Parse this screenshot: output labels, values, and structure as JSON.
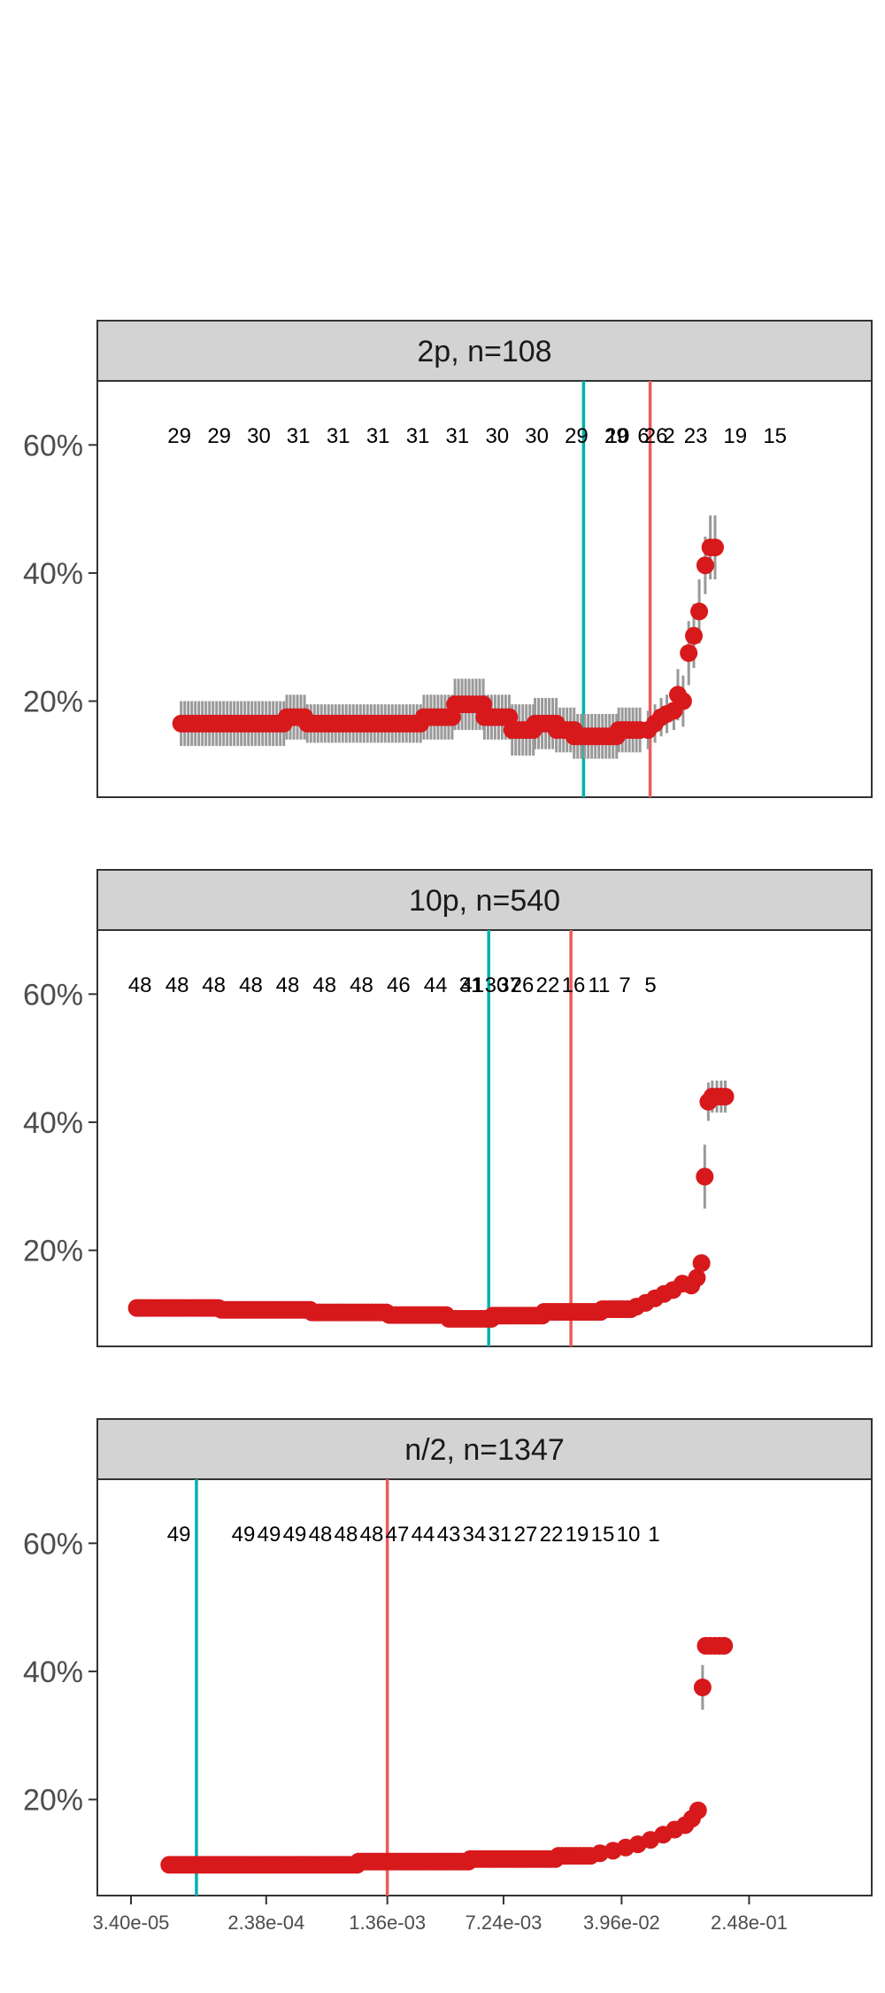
{
  "chart_data": {
    "type": "scatter",
    "x_scale": "log",
    "x_ticks": [
      "3.40e-05",
      "2.38e-04",
      "1.36e-03",
      "7.24e-03",
      "3.96e-02",
      "2.48e-01"
    ],
    "y_ticks": [
      "20%",
      "40%",
      "60%"
    ],
    "y_range": [
      0.05,
      0.7
    ],
    "grid": false,
    "colors": {
      "point": "#d7191c",
      "error_bar": "#999999",
      "line_teal": "#00b0b0",
      "line_red": "#f05a5a",
      "strip_bg": "#d3d3d3"
    },
    "panels": [
      {
        "strip": "2p, n=108",
        "vlines": {
          "teal_x": 0.0229,
          "red_x": 0.0597
        },
        "counts": [
          {
            "x": 6.82e-05,
            "label": "29"
          },
          {
            "x": 0.000121,
            "label": "29"
          },
          {
            "x": 0.000214,
            "label": "30"
          },
          {
            "x": 0.000378,
            "label": "31"
          },
          {
            "x": 0.000671,
            "label": "31"
          },
          {
            "x": 0.00119,
            "label": "31"
          },
          {
            "x": 0.00211,
            "label": "31"
          },
          {
            "x": 0.00373,
            "label": "31"
          },
          {
            "x": 0.00661,
            "label": "30"
          },
          {
            "x": 0.0117,
            "label": "30"
          },
          {
            "x": 0.0207,
            "label": "29"
          },
          {
            "x": 0.0367,
            "label": "29"
          },
          {
            "x": 0.0649,
            "label": "26"
          },
          {
            "x": 0.115,
            "label": "23"
          },
          {
            "x": 0.203,
            "label": "19"
          },
          {
            "x": 0.36,
            "label": "15"
          },
          {
            "x": 0.0229,
            "label": "10",
            "fixed_px": 588
          },
          {
            "x": 0.0896,
            "label": "6",
            "fixed_px": 617
          },
          {
            "x": 0.166,
            "label": "2",
            "fixed_px": 646
          }
        ],
        "segments": [
          {
            "x0": 7e-05,
            "x1": 0.00032,
            "y": 0.165,
            "err": 0.035
          },
          {
            "x0": 0.00032,
            "x1": 0.00043,
            "y": 0.175,
            "err": 0.035
          },
          {
            "x0": 0.00043,
            "x1": 0.0023,
            "y": 0.165,
            "err": 0.03
          },
          {
            "x0": 0.0023,
            "x1": 0.0036,
            "y": 0.175,
            "err": 0.035
          },
          {
            "x0": 0.0036,
            "x1": 0.0055,
            "y": 0.195,
            "err": 0.04
          },
          {
            "x0": 0.0055,
            "x1": 0.0082,
            "y": 0.175,
            "err": 0.035
          },
          {
            "x0": 0.0082,
            "x1": 0.0114,
            "y": 0.155,
            "err": 0.04
          },
          {
            "x0": 0.0114,
            "x1": 0.0155,
            "y": 0.165,
            "err": 0.04
          },
          {
            "x0": 0.0155,
            "x1": 0.02,
            "y": 0.155,
            "err": 0.035
          },
          {
            "x0": 0.02,
            "x1": 0.038,
            "y": 0.145,
            "err": 0.035
          },
          {
            "x0": 0.038,
            "x1": 0.053,
            "y": 0.155,
            "err": 0.035
          }
        ],
        "points": [
          {
            "x": 0.058,
            "y": 0.155,
            "err": 0.03
          },
          {
            "x": 0.064,
            "y": 0.165,
            "err": 0.03
          },
          {
            "x": 0.07,
            "y": 0.175,
            "err": 0.03
          },
          {
            "x": 0.076,
            "y": 0.18,
            "err": 0.03
          },
          {
            "x": 0.084,
            "y": 0.185,
            "err": 0.03
          },
          {
            "x": 0.089,
            "y": 0.21,
            "err": 0.04
          },
          {
            "x": 0.096,
            "y": 0.2,
            "err": 0.04
          },
          {
            "x": 0.104,
            "y": 0.275,
            "err": 0.05
          },
          {
            "x": 0.112,
            "y": 0.302,
            "err": 0.05
          },
          {
            "x": 0.121,
            "y": 0.34,
            "err": 0.05
          },
          {
            "x": 0.132,
            "y": 0.412,
            "err": 0.045
          },
          {
            "x": 0.142,
            "y": 0.44,
            "err": 0.05
          },
          {
            "x": 0.152,
            "y": 0.44,
            "err": 0.05
          }
        ]
      },
      {
        "strip": "10p, n=540",
        "vlines": {
          "teal_x": 0.00585,
          "red_x": 0.0191
        },
        "counts": [
          {
            "x": 3.87e-05,
            "label": "48"
          },
          {
            "x": 6.6e-05,
            "label": "48"
          },
          {
            "x": 0.000112,
            "label": "48"
          },
          {
            "x": 0.000191,
            "label": "48"
          },
          {
            "x": 0.000324,
            "label": "48"
          },
          {
            "x": 0.000551,
            "label": "48"
          },
          {
            "x": 0.000938,
            "label": "48"
          },
          {
            "x": 0.0016,
            "label": "46"
          },
          {
            "x": 0.00272,
            "label": "44"
          },
          {
            "x": 0.00463,
            "label": "41"
          },
          {
            "x": 0.00788,
            "label": "37"
          },
          {
            "x": 0.00585,
            "label": "31",
            "fixed_px": 422
          },
          {
            "x": 0.00985,
            "label": "30",
            "fixed_px": 451
          },
          {
            "x": 0.0191,
            "label": "26",
            "fixed_px": 480
          },
          {
            "x": 0.032,
            "label": "22",
            "fixed_px": 509
          },
          {
            "x": 0.054,
            "label": "16",
            "fixed_px": 538
          },
          {
            "x": 0.091,
            "label": "11",
            "fixed_px": 567
          },
          {
            "x": 0.153,
            "label": "7",
            "fixed_px": 596
          },
          {
            "x": 0.257,
            "label": "5",
            "fixed_px": 625
          }
        ],
        "segments": [
          {
            "x0": 3.7e-05,
            "x1": 0.000125,
            "y": 0.11,
            "err": 0.004
          },
          {
            "x0": 0.000125,
            "x1": 0.00046,
            "y": 0.107,
            "err": 0.004
          },
          {
            "x0": 0.00046,
            "x1": 0.0014,
            "y": 0.103,
            "err": 0.004
          },
          {
            "x0": 0.0014,
            "x1": 0.0033,
            "y": 0.099,
            "err": 0.004
          },
          {
            "x0": 0.0033,
            "x1": 0.0062,
            "y": 0.093,
            "err": 0.004
          },
          {
            "x0": 0.0062,
            "x1": 0.013,
            "y": 0.098,
            "err": 0.004
          },
          {
            "x0": 0.013,
            "x1": 0.03,
            "y": 0.104,
            "err": 0.004
          },
          {
            "x0": 0.03,
            "x1": 0.046,
            "y": 0.108,
            "err": 0.004
          }
        ],
        "points": [
          {
            "x": 0.049,
            "y": 0.112,
            "err": 0.004
          },
          {
            "x": 0.056,
            "y": 0.118,
            "err": 0.004
          },
          {
            "x": 0.064,
            "y": 0.125,
            "err": 0.004
          },
          {
            "x": 0.073,
            "y": 0.132,
            "err": 0.005
          },
          {
            "x": 0.083,
            "y": 0.138,
            "err": 0.005
          },
          {
            "x": 0.095,
            "y": 0.148,
            "err": 0.005
          },
          {
            "x": 0.108,
            "y": 0.145,
            "err": 0.006
          },
          {
            "x": 0.117,
            "y": 0.157,
            "err": 0.006
          },
          {
            "x": 0.125,
            "y": 0.18,
            "err": 0.008
          },
          {
            "x": 0.131,
            "y": 0.315,
            "err": 0.05
          },
          {
            "x": 0.138,
            "y": 0.432,
            "err": 0.03
          },
          {
            "x": 0.146,
            "y": 0.44,
            "err": 0.025
          },
          {
            "x": 0.156,
            "y": 0.44,
            "err": 0.025
          },
          {
            "x": 0.166,
            "y": 0.44,
            "err": 0.025
          },
          {
            "x": 0.176,
            "y": 0.44,
            "err": 0.025
          }
        ]
      },
      {
        "strip": "n/2, n=1347",
        "vlines": {
          "teal_x": 8.72e-05,
          "red_x": 0.00136
        },
        "counts": [
          {
            "x": 6.77e-05,
            "label": "49"
          },
          {
            "x": 8.72e-05,
            "label": "49",
            "fixed_px": 165
          },
          {
            "x": 0.00015,
            "label": "49",
            "fixed_px": 194
          },
          {
            "x": 0.000256,
            "label": "49",
            "fixed_px": 223
          },
          {
            "x": 0.000436,
            "label": "48",
            "fixed_px": 252
          },
          {
            "x": 0.000742,
            "label": "48",
            "fixed_px": 281
          },
          {
            "x": 0.00126,
            "label": "48",
            "fixed_px": 310
          },
          {
            "x": 0.00136,
            "label": "47",
            "fixed_px": 339
          },
          {
            "x": 0.0024,
            "label": "44",
            "fixed_px": 368
          },
          {
            "x": 0.00409,
            "label": "43",
            "fixed_px": 397
          },
          {
            "x": 0.00697,
            "label": "34",
            "fixed_px": 426
          },
          {
            "x": 0.0119,
            "label": "31",
            "fixed_px": 455
          },
          {
            "x": 0.0202,
            "label": "27",
            "fixed_px": 484
          },
          {
            "x": 0.0344,
            "label": "22",
            "fixed_px": 513
          },
          {
            "x": 0.0585,
            "label": "19",
            "fixed_px": 542
          },
          {
            "x": 0.0996,
            "label": "15",
            "fixed_px": 571
          },
          {
            "x": 0.1696,
            "label": "10",
            "fixed_px": 600
          },
          {
            "x": 0.2888,
            "label": "1",
            "fixed_px": 629
          }
        ],
        "segments": [
          {
            "x0": 5.9e-05,
            "x1": 0.0009,
            "y": 0.098,
            "err": 0.003
          },
          {
            "x0": 0.0009,
            "x1": 0.0045,
            "y": 0.103,
            "err": 0.003
          },
          {
            "x0": 0.0045,
            "x1": 0.016,
            "y": 0.107,
            "err": 0.003
          },
          {
            "x0": 0.016,
            "x1": 0.026,
            "y": 0.112,
            "err": 0.003
          }
        ],
        "points": [
          {
            "x": 0.029,
            "y": 0.116,
            "err": 0.003
          },
          {
            "x": 0.035,
            "y": 0.12,
            "err": 0.003
          },
          {
            "x": 0.042,
            "y": 0.125,
            "err": 0.003
          },
          {
            "x": 0.05,
            "y": 0.13,
            "err": 0.003
          },
          {
            "x": 0.06,
            "y": 0.137,
            "err": 0.003
          },
          {
            "x": 0.072,
            "y": 0.145,
            "err": 0.004
          },
          {
            "x": 0.085,
            "y": 0.153,
            "err": 0.004
          },
          {
            "x": 0.099,
            "y": 0.16,
            "err": 0.004
          },
          {
            "x": 0.109,
            "y": 0.17,
            "err": 0.005
          },
          {
            "x": 0.119,
            "y": 0.183,
            "err": 0.005
          },
          {
            "x": 0.127,
            "y": 0.375,
            "err": 0.035
          },
          {
            "x": 0.133,
            "y": 0.44,
            "err": 0.004
          },
          {
            "x": 0.142,
            "y": 0.44,
            "err": 0.004
          },
          {
            "x": 0.152,
            "y": 0.44,
            "err": 0.004
          },
          {
            "x": 0.162,
            "y": 0.44,
            "err": 0.004
          },
          {
            "x": 0.173,
            "y": 0.44,
            "err": 0.004
          }
        ]
      }
    ]
  }
}
